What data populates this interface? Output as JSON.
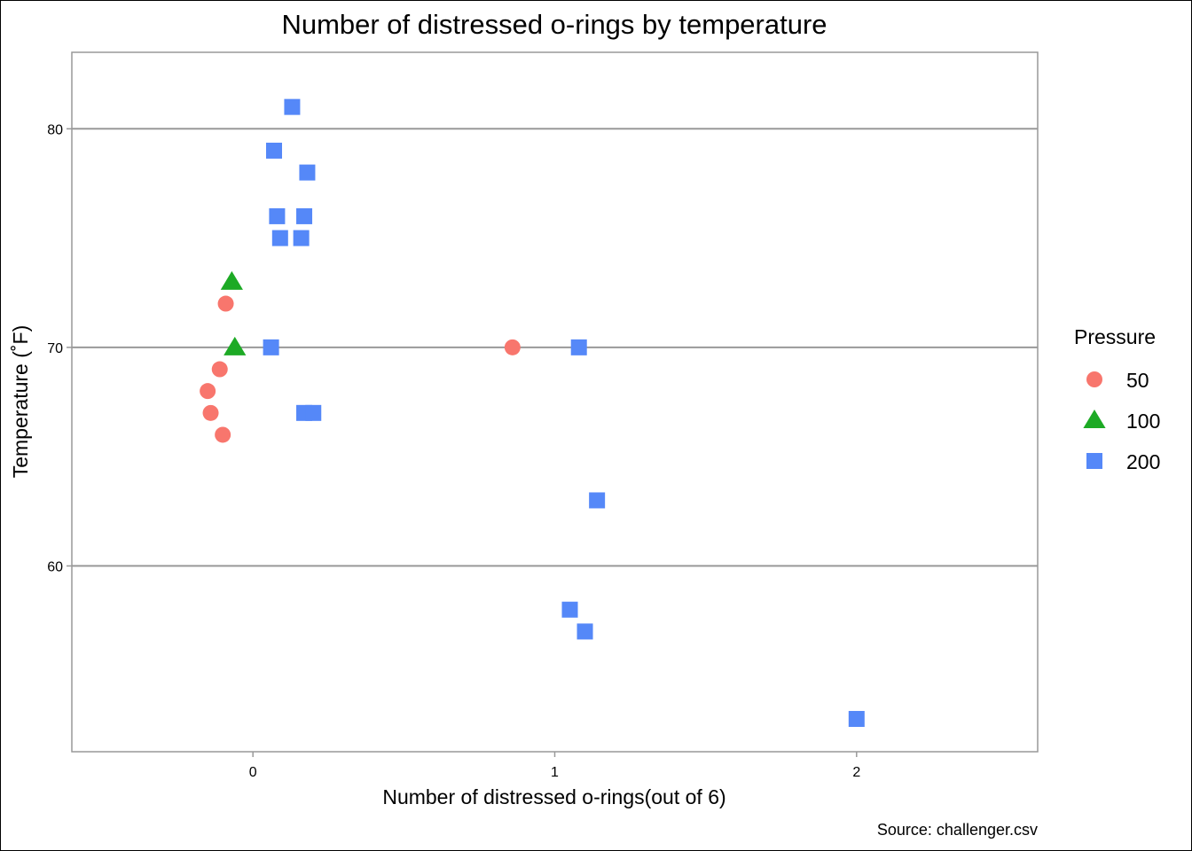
{
  "chart_data": {
    "type": "scatter",
    "title": "Number of distressed o-rings by temperature",
    "xlabel": "Number of distressed o-rings(out of 6)",
    "ylabel": "Temperature (˚F)",
    "caption": "Source: challenger.csv",
    "xlim": [
      -0.6,
      2.6
    ],
    "ylim": [
      51.5,
      83.5
    ],
    "x_ticks": [
      0,
      1,
      2
    ],
    "y_ticks": [
      60,
      70,
      80
    ],
    "grid": "horizontal major lines",
    "legend": {
      "title": "Pressure",
      "position": "right"
    },
    "series": [
      {
        "name": "50",
        "shape": "circle",
        "color": "#F8766D",
        "points": [
          {
            "x": -0.09,
            "y": 72
          },
          {
            "x": -0.11,
            "y": 69
          },
          {
            "x": -0.15,
            "y": 68
          },
          {
            "x": -0.14,
            "y": 67
          },
          {
            "x": -0.1,
            "y": 66
          },
          {
            "x": 0.86,
            "y": 70
          }
        ]
      },
      {
        "name": "100",
        "shape": "triangle",
        "color": "#1DAA25",
        "points": [
          {
            "x": -0.07,
            "y": 73
          },
          {
            "x": -0.06,
            "y": 70
          }
        ]
      },
      {
        "name": "200",
        "shape": "square",
        "color": "#5588F8",
        "points": [
          {
            "x": 0.13,
            "y": 81
          },
          {
            "x": 0.07,
            "y": 79
          },
          {
            "x": 0.18,
            "y": 78
          },
          {
            "x": 0.08,
            "y": 76
          },
          {
            "x": 0.17,
            "y": 76
          },
          {
            "x": 0.09,
            "y": 75
          },
          {
            "x": 0.16,
            "y": 75
          },
          {
            "x": 0.06,
            "y": 70
          },
          {
            "x": 0.17,
            "y": 67
          },
          {
            "x": 0.2,
            "y": 67
          },
          {
            "x": 1.08,
            "y": 70
          },
          {
            "x": 1.14,
            "y": 63
          },
          {
            "x": 1.05,
            "y": 58
          },
          {
            "x": 1.1,
            "y": 57
          },
          {
            "x": 2.0,
            "y": 53
          }
        ]
      }
    ]
  }
}
